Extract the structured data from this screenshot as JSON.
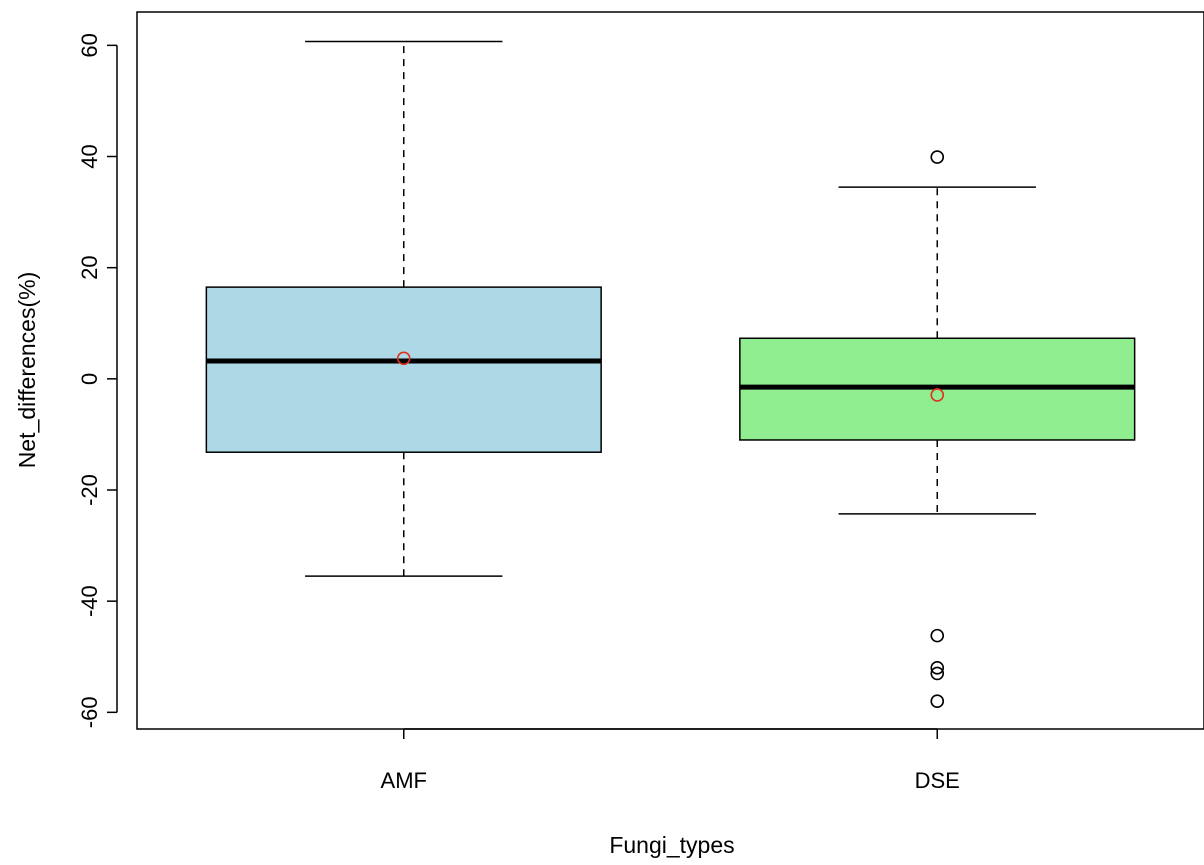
{
  "chart_data": {
    "type": "boxplot",
    "title": "",
    "xlabel": "Fungi_types",
    "ylabel": "Net_differences(%)",
    "ylim": [
      -63,
      66
    ],
    "yticks": [
      -60,
      -40,
      -20,
      0,
      20,
      40,
      60
    ],
    "grid": false,
    "legend": "none",
    "categories": [
      "AMF",
      "DSE"
    ],
    "series": [
      {
        "category": "AMF",
        "whisker_low": -35.5,
        "q1": -13.2,
        "median": 3.2,
        "q3": 16.5,
        "whisker_high": 60.7,
        "mean": 3.7,
        "outliers": [],
        "fill": "#add8e6"
      },
      {
        "category": "DSE",
        "whisker_low": -24.3,
        "q1": -11.0,
        "median": -1.5,
        "q3": 7.3,
        "whisker_high": 34.5,
        "mean": -2.9,
        "outliers": [
          39.9,
          -46.2,
          -52.0,
          -53.0,
          -58.0
        ],
        "fill": "#90ee90"
      }
    ],
    "colors": {
      "mean_marker": "#e0301e",
      "outline": "#000000"
    }
  }
}
